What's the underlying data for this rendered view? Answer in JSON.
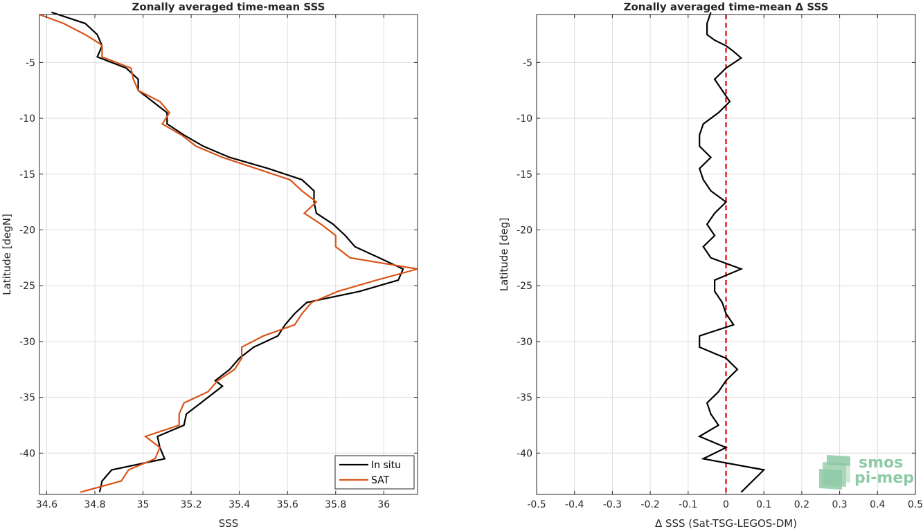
{
  "colors": {
    "insitu": "#000000",
    "sat": "#d95319",
    "zero_line": "#e00000",
    "grid": "#dedede",
    "axis": "#262626",
    "logo": "#8fcaa6"
  },
  "logo": {
    "line1": "smos",
    "line2": "pi-mep"
  },
  "chart_data": [
    {
      "type": "line",
      "title": "Zonally averaged time-mean SSS",
      "xlabel": "SSS",
      "ylabel": "Latitude [degN]",
      "xlim": [
        34.57,
        36.14
      ],
      "ylim": [
        -43.7,
        -0.7
      ],
      "xticks": [
        34.6,
        34.8,
        35,
        35.2,
        35.4,
        35.6,
        35.8,
        36
      ],
      "xtick_labels": [
        "34.6",
        "34.8",
        "35",
        "35.2",
        "35.4",
        "35.6",
        "35.8",
        "36"
      ],
      "yticks": [
        -5,
        -10,
        -15,
        -20,
        -25,
        -30,
        -35,
        -40
      ],
      "ytick_labels": [
        "-5",
        "-10",
        "-15",
        "-20",
        "-25",
        "-30",
        "-35",
        "-40"
      ],
      "grid": true,
      "legend_position": "bottom-right",
      "series": [
        {
          "name": "In situ",
          "color_key": "insitu",
          "points": [
            [
              34.62,
              -0.5
            ],
            [
              34.76,
              -1.5
            ],
            [
              34.81,
              -2.5
            ],
            [
              34.83,
              -3.5
            ],
            [
              34.82,
              -4
            ],
            [
              34.81,
              -4.5
            ],
            [
              34.93,
              -5.5
            ],
            [
              34.98,
              -6.5
            ],
            [
              34.98,
              -7.5
            ],
            [
              35.04,
              -8.5
            ],
            [
              35.1,
              -9.5
            ],
            [
              35.1,
              -10.5
            ],
            [
              35.17,
              -11.5
            ],
            [
              35.25,
              -12.5
            ],
            [
              35.36,
              -13.5
            ],
            [
              35.52,
              -14.5
            ],
            [
              35.66,
              -15.5
            ],
            [
              35.71,
              -16.5
            ],
            [
              35.71,
              -17.5
            ],
            [
              35.72,
              -18.5
            ],
            [
              35.79,
              -19.5
            ],
            [
              35.84,
              -20.5
            ],
            [
              35.88,
              -21.5
            ],
            [
              35.98,
              -22.5
            ],
            [
              36.08,
              -23.5
            ],
            [
              36.06,
              -24.5
            ],
            [
              35.9,
              -25.5
            ],
            [
              35.68,
              -26.5
            ],
            [
              35.63,
              -27.5
            ],
            [
              35.59,
              -28.5
            ],
            [
              35.56,
              -29.5
            ],
            [
              35.46,
              -30.5
            ],
            [
              35.4,
              -31.5
            ],
            [
              35.36,
              -32.5
            ],
            [
              35.3,
              -33.5
            ],
            [
              35.33,
              -34
            ],
            [
              35.24,
              -35.5
            ],
            [
              35.18,
              -36.5
            ],
            [
              35.17,
              -37.5
            ],
            [
              35.06,
              -38.5
            ],
            [
              35.07,
              -39.5
            ],
            [
              35.09,
              -40.5
            ],
            [
              34.87,
              -41.5
            ],
            [
              34.83,
              -42.5
            ],
            [
              34.82,
              -43.5
            ]
          ]
        },
        {
          "name": "SAT",
          "color_key": "sat",
          "points": [
            [
              34.57,
              -0.7
            ],
            [
              34.67,
              -1.5
            ],
            [
              34.76,
              -2.5
            ],
            [
              34.82,
              -3.3
            ],
            [
              34.83,
              -3.5
            ],
            [
              34.83,
              -4.5
            ],
            [
              34.95,
              -5.5
            ],
            [
              34.96,
              -6.5
            ],
            [
              34.98,
              -7.5
            ],
            [
              35.07,
              -8.5
            ],
            [
              35.11,
              -9.5
            ],
            [
              35.08,
              -10.5
            ],
            [
              35.16,
              -11.5
            ],
            [
              35.22,
              -12.5
            ],
            [
              35.33,
              -13.5
            ],
            [
              35.47,
              -14.5
            ],
            [
              35.61,
              -15.5
            ],
            [
              35.66,
              -16.5
            ],
            [
              35.72,
              -17.5
            ],
            [
              35.67,
              -18.5
            ],
            [
              35.74,
              -19.5
            ],
            [
              35.8,
              -20.5
            ],
            [
              35.8,
              -21.5
            ],
            [
              35.86,
              -22.5
            ],
            [
              36.14,
              -23.5
            ],
            [
              35.97,
              -24.5
            ],
            [
              35.81,
              -25.5
            ],
            [
              35.7,
              -26.5
            ],
            [
              35.66,
              -27.5
            ],
            [
              35.63,
              -28.5
            ],
            [
              35.5,
              -29.5
            ],
            [
              35.41,
              -30.5
            ],
            [
              35.41,
              -31.5
            ],
            [
              35.38,
              -32.5
            ],
            [
              35.31,
              -33.5
            ],
            [
              35.27,
              -34.5
            ],
            [
              35.17,
              -35.5
            ],
            [
              35.15,
              -36.5
            ],
            [
              35.15,
              -37.5
            ],
            [
              35.01,
              -38.5
            ],
            [
              35.07,
              -39.5
            ],
            [
              35.05,
              -40.5
            ],
            [
              34.94,
              -41.5
            ],
            [
              34.91,
              -42.5
            ],
            [
              34.74,
              -43.5
            ]
          ]
        }
      ]
    },
    {
      "type": "line",
      "title": "Zonally averaged time-mean Δ SSS",
      "xlabel": "Δ SSS (Sat-TSG-LEGOS-DM)",
      "ylabel": "Latitude [deg]",
      "xlim": [
        -0.5,
        0.5
      ],
      "ylim": [
        -43.7,
        -0.7
      ],
      "xticks": [
        -0.5,
        -0.4,
        -0.3,
        -0.2,
        -0.1,
        0,
        0.1,
        0.2,
        0.3,
        0.4,
        0.5
      ],
      "xtick_labels": [
        "-0.5",
        "-0.4",
        "-0.3",
        "-0.2",
        "-0.1",
        "0",
        "0.1",
        "0.2",
        "0.3",
        "0.4",
        "0.5"
      ],
      "yticks": [
        -5,
        -10,
        -15,
        -20,
        -25,
        -30,
        -35,
        -40
      ],
      "ytick_labels": [
        "-5",
        "-10",
        "-15",
        "-20",
        "-25",
        "-30",
        "-35",
        "-40"
      ],
      "grid": true,
      "reference_line_x": 0,
      "series": [
        {
          "color_key": "insitu",
          "points": [
            [
              -0.04,
              -0.5
            ],
            [
              -0.05,
              -1.5
            ],
            [
              -0.05,
              -2.5
            ],
            [
              -0.03,
              -3
            ],
            [
              0.0,
              -3.5
            ],
            [
              0.02,
              -4
            ],
            [
              0.04,
              -4.6
            ],
            [
              0.0,
              -5.5
            ],
            [
              -0.03,
              -6.5
            ],
            [
              -0.01,
              -7.5
            ],
            [
              0.01,
              -8.5
            ],
            [
              -0.02,
              -9.5
            ],
            [
              -0.06,
              -10.5
            ],
            [
              -0.07,
              -11.5
            ],
            [
              -0.07,
              -12.5
            ],
            [
              -0.04,
              -13.5
            ],
            [
              -0.07,
              -14.5
            ],
            [
              -0.06,
              -15.5
            ],
            [
              -0.04,
              -16.5
            ],
            [
              0.0,
              -17.5
            ],
            [
              -0.03,
              -18.5
            ],
            [
              -0.05,
              -19.5
            ],
            [
              -0.03,
              -20.5
            ],
            [
              -0.06,
              -21.5
            ],
            [
              -0.04,
              -22.5
            ],
            [
              0.04,
              -23.5
            ],
            [
              -0.03,
              -24.5
            ],
            [
              -0.03,
              -25.5
            ],
            [
              -0.01,
              -26.5
            ],
            [
              0.0,
              -27.5
            ],
            [
              0.02,
              -28.5
            ],
            [
              -0.07,
              -29.5
            ],
            [
              -0.07,
              -30.5
            ],
            [
              0.0,
              -31.5
            ],
            [
              0.03,
              -32.5
            ],
            [
              0.0,
              -33.5
            ],
            [
              -0.02,
              -34.5
            ],
            [
              -0.05,
              -35.5
            ],
            [
              -0.04,
              -36.5
            ],
            [
              -0.02,
              -37.5
            ],
            [
              -0.07,
              -38.5
            ],
            [
              0.0,
              -39.5
            ],
            [
              -0.06,
              -40.5
            ],
            [
              0.1,
              -41.5
            ],
            [
              0.07,
              -42.5
            ],
            [
              0.04,
              -43.5
            ]
          ]
        }
      ]
    }
  ]
}
